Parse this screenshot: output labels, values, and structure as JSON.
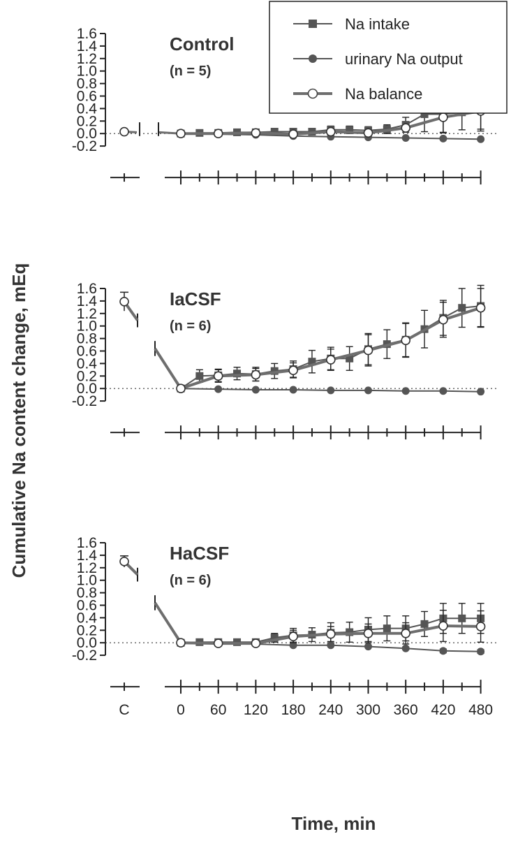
{
  "chart_data": {
    "type": "line",
    "ylabel": "Cumulative Na content change, mEq",
    "xlabel": "Time, min",
    "control_tick_label": "C",
    "x_ticks": [
      0,
      60,
      120,
      180,
      240,
      300,
      360,
      420,
      480
    ],
    "ylim": [
      -0.2,
      1.6
    ],
    "y_ticks": [
      "1.6",
      "1.4",
      "1.2",
      "1.0",
      "0.8",
      "0.6",
      "0.4",
      "0.2",
      "0.0",
      "-0.2"
    ],
    "legend": {
      "placement": "top-right",
      "entries": [
        "Na intake",
        "urinary Na output",
        "Na balance"
      ]
    },
    "colors": {
      "line": "#555555",
      "thick_line": "#6e6e6e",
      "marker": "#555555"
    },
    "panels": [
      {
        "title": "Control",
        "n_label": "(n = 5)",
        "control_balance": 0.03,
        "series": [
          {
            "name": "Na intake",
            "marker": "square",
            "x": [
              0,
              30,
              60,
              90,
              120,
              150,
              180,
              210,
              240,
              270,
              300,
              330,
              360,
              390,
              420,
              450,
              480
            ],
            "y": [
              0,
              0.01,
              0.01,
              0.02,
              0.02,
              0.03,
              0.03,
              0.03,
              0.06,
              0.06,
              0.05,
              0.07,
              0.14,
              0.31,
              0.31,
              0.34,
              0.43
            ],
            "err": [
              0,
              0.01,
              0.02,
              0.02,
              0.02,
              0.02,
              0.03,
              0.04,
              0.06,
              0.06,
              0.06,
              0.07,
              0.12,
              0.28,
              0.29,
              0.28,
              0.36
            ]
          },
          {
            "name": "urinary Na output",
            "marker": "circle",
            "x": [
              0,
              60,
              120,
              180,
              240,
              300,
              360,
              420,
              480
            ],
            "y": [
              0,
              -0.01,
              -0.02,
              -0.04,
              -0.05,
              -0.06,
              -0.07,
              -0.08,
              -0.09
            ],
            "err": [
              0,
              0,
              0,
              0,
              0,
              0,
              0,
              0,
              0
            ]
          },
          {
            "name": "Na balance",
            "marker": "open-circle",
            "x": [
              0,
              60,
              120,
              180,
              240,
              300,
              360,
              420,
              480
            ],
            "y": [
              0,
              0,
              0.01,
              -0.01,
              0.03,
              0.01,
              0.09,
              0.26,
              0.36
            ],
            "err": [
              0,
              0,
              0,
              0,
              0,
              0,
              0,
              0.25,
              0.32
            ]
          }
        ]
      },
      {
        "title": "IaCSF",
        "n_label": "(n = 6)",
        "control_balance": 1.39,
        "control_err": 0.15,
        "series": [
          {
            "name": "Na intake",
            "marker": "square",
            "x": [
              0,
              30,
              60,
              90,
              120,
              150,
              180,
              210,
              240,
              270,
              300,
              330,
              360,
              390,
              420,
              450,
              480
            ],
            "y": [
              0,
              0.2,
              0.21,
              0.24,
              0.23,
              0.28,
              0.31,
              0.43,
              0.48,
              0.48,
              0.63,
              0.71,
              0.78,
              0.95,
              1.13,
              1.29,
              1.32
            ],
            "err": [
              0,
              0.1,
              0.1,
              0.1,
              0.11,
              0.12,
              0.13,
              0.18,
              0.18,
              0.19,
              0.25,
              0.23,
              0.27,
              0.3,
              0.28,
              0.31,
              0.33
            ]
          },
          {
            "name": "urinary Na output",
            "marker": "circle",
            "x": [
              0,
              60,
              120,
              180,
              240,
              300,
              360,
              420,
              480
            ],
            "y": [
              0,
              -0.01,
              -0.02,
              -0.02,
              -0.03,
              -0.03,
              -0.04,
              -0.04,
              -0.05
            ],
            "err": [
              0,
              0,
              0,
              0,
              0,
              0,
              0,
              0,
              0
            ]
          },
          {
            "name": "Na balance",
            "marker": "open-circle",
            "x": [
              0,
              60,
              120,
              180,
              240,
              300,
              360,
              420,
              480
            ],
            "y": [
              0,
              0.2,
              0.22,
              0.29,
              0.46,
              0.61,
              0.77,
              1.1,
              1.29
            ],
            "err": [
              0,
              0.1,
              0.1,
              0.12,
              0.17,
              0.25,
              0.27,
              0.28,
              0.31
            ]
          }
        ]
      },
      {
        "title": "HaCSF",
        "n_label": "(n = 6)",
        "control_balance": 1.3,
        "control_err": 0.09,
        "series": [
          {
            "name": "Na intake",
            "marker": "square",
            "x": [
              0,
              30,
              60,
              90,
              120,
              150,
              180,
              210,
              240,
              270,
              300,
              330,
              360,
              390,
              420,
              450,
              480
            ],
            "y": [
              0,
              0.01,
              0.01,
              0.01,
              0.01,
              0.08,
              0.12,
              0.13,
              0.16,
              0.17,
              0.21,
              0.23,
              0.23,
              0.3,
              0.39,
              0.39,
              0.39
            ],
            "err": [
              0,
              0.01,
              0.01,
              0.01,
              0.02,
              0.07,
              0.11,
              0.11,
              0.16,
              0.16,
              0.19,
              0.2,
              0.2,
              0.2,
              0.24,
              0.24,
              0.24
            ]
          },
          {
            "name": "urinary Na output",
            "marker": "circle",
            "x": [
              0,
              60,
              120,
              180,
              240,
              300,
              360,
              420,
              480
            ],
            "y": [
              0,
              -0.01,
              -0.02,
              -0.04,
              -0.04,
              -0.06,
              -0.09,
              -0.13,
              -0.14
            ],
            "err": [
              0,
              0,
              0,
              0,
              0,
              0,
              0.02,
              0.03,
              0.03
            ]
          },
          {
            "name": "Na balance",
            "marker": "open-circle",
            "x": [
              0,
              60,
              120,
              180,
              240,
              300,
              360,
              420,
              480
            ],
            "y": [
              0,
              -0.01,
              -0.01,
              0.1,
              0.14,
              0.15,
              0.15,
              0.27,
              0.26
            ],
            "err": [
              0,
              0,
              0,
              0.1,
              0.12,
              0.15,
              0.17,
              0.25,
              0.25
            ]
          }
        ]
      }
    ]
  }
}
